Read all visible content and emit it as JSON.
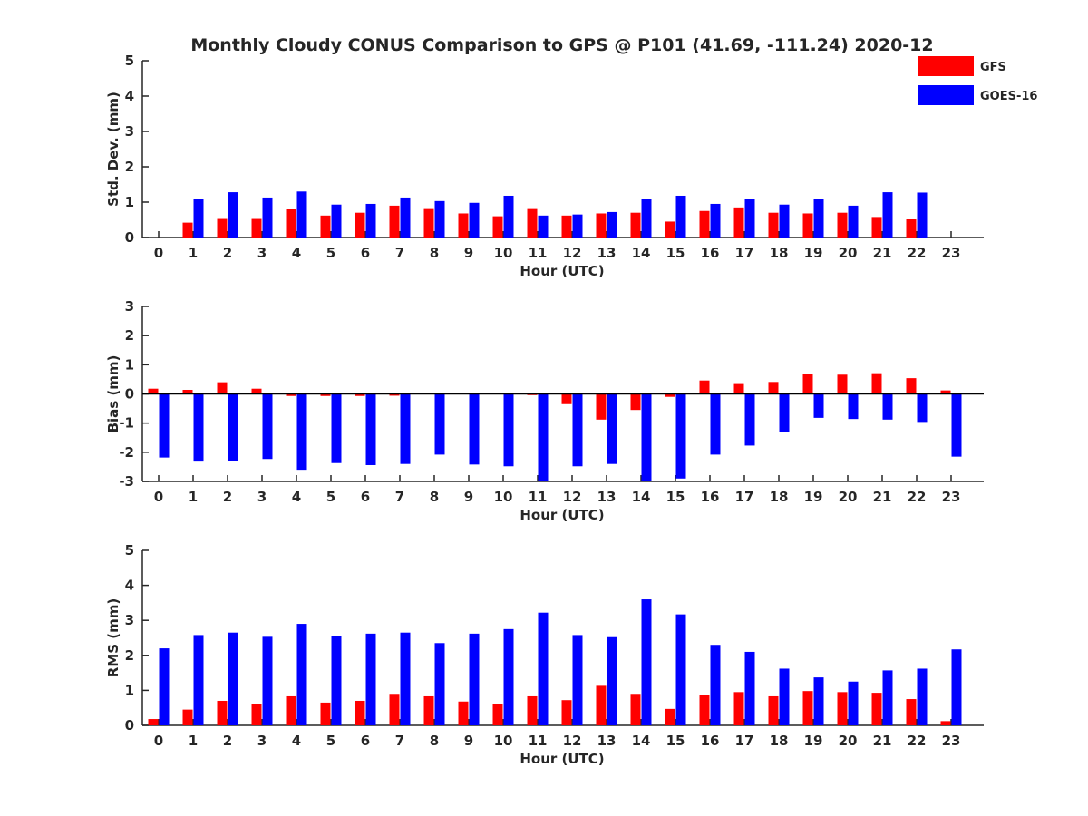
{
  "chart_data": [
    {
      "type": "bar",
      "title": "Monthly Cloudy CONUS Comparison to GPS @ P101 (41.69, -111.24) 2020-12",
      "xlabel": "Hour (UTC)",
      "ylabel": "Std. Dev. (mm)",
      "ylim": [
        0,
        5
      ],
      "yticks": [
        0,
        1,
        2,
        3,
        4,
        5
      ],
      "categories": [
        "0",
        "1",
        "2",
        "3",
        "4",
        "5",
        "6",
        "7",
        "8",
        "9",
        "10",
        "11",
        "12",
        "13",
        "14",
        "15",
        "16",
        "17",
        "18",
        "19",
        "20",
        "21",
        "22",
        "23"
      ],
      "legend": {
        "position": "top-right",
        "entries": [
          "GFS",
          "GOES-16"
        ]
      },
      "series": [
        {
          "name": "GFS",
          "color": "#ff0000",
          "values": [
            null,
            0.42,
            0.55,
            0.55,
            0.8,
            0.62,
            0.7,
            0.9,
            0.83,
            0.68,
            0.6,
            0.83,
            0.62,
            0.68,
            0.7,
            0.45,
            0.75,
            0.85,
            0.7,
            0.68,
            0.7,
            0.58,
            0.52,
            null
          ]
        },
        {
          "name": "GOES-16",
          "color": "#0000ff",
          "values": [
            null,
            1.08,
            1.28,
            1.13,
            1.3,
            0.93,
            0.95,
            1.13,
            1.03,
            0.98,
            1.18,
            0.62,
            0.65,
            0.72,
            1.1,
            1.18,
            0.95,
            1.08,
            0.93,
            1.1,
            0.9,
            1.28,
            1.27,
            null
          ]
        }
      ]
    },
    {
      "type": "bar",
      "xlabel": "Hour (UTC)",
      "ylabel": "Bias (mm)",
      "ylim": [
        -3,
        3
      ],
      "yticks": [
        -3,
        -2,
        -1,
        0,
        1,
        2,
        3
      ],
      "categories": [
        "0",
        "1",
        "2",
        "3",
        "4",
        "5",
        "6",
        "7",
        "8",
        "9",
        "10",
        "11",
        "12",
        "13",
        "14",
        "15",
        "16",
        "17",
        "18",
        "19",
        "20",
        "21",
        "22",
        "23"
      ],
      "series": [
        {
          "name": "GFS",
          "color": "#ff0000",
          "values": [
            0.18,
            0.14,
            0.4,
            0.18,
            -0.07,
            -0.07,
            -0.07,
            -0.06,
            0.0,
            0.02,
            0.0,
            -0.04,
            -0.35,
            -0.88,
            -0.55,
            -0.1,
            0.46,
            0.37,
            0.41,
            0.68,
            0.66,
            0.71,
            0.54,
            0.12
          ]
        },
        {
          "name": "GOES-16",
          "color": "#0000ff",
          "values": [
            -2.18,
            -2.32,
            -2.3,
            -2.23,
            -2.6,
            -2.37,
            -2.44,
            -2.4,
            -2.08,
            -2.42,
            -2.48,
            -3.0,
            -2.48,
            -2.4,
            -3.0,
            -2.9,
            -2.08,
            -1.77,
            -1.3,
            -0.82,
            -0.86,
            -0.88,
            -0.96,
            -2.15
          ]
        }
      ]
    },
    {
      "type": "bar",
      "xlabel": "Hour (UTC)",
      "ylabel": "RMS (mm)",
      "ylim": [
        0,
        5
      ],
      "yticks": [
        0,
        1,
        2,
        3,
        4,
        5
      ],
      "categories": [
        "0",
        "1",
        "2",
        "3",
        "4",
        "5",
        "6",
        "7",
        "8",
        "9",
        "10",
        "11",
        "12",
        "13",
        "14",
        "15",
        "16",
        "17",
        "18",
        "19",
        "20",
        "21",
        "22",
        "23"
      ],
      "series": [
        {
          "name": "GFS",
          "color": "#ff0000",
          "values": [
            0.18,
            0.45,
            0.7,
            0.6,
            0.83,
            0.65,
            0.7,
            0.9,
            0.83,
            0.68,
            0.62,
            0.83,
            0.72,
            1.13,
            0.9,
            0.47,
            0.88,
            0.95,
            0.83,
            0.98,
            0.95,
            0.93,
            0.75,
            0.12
          ]
        },
        {
          "name": "GOES-16",
          "color": "#0000ff",
          "values": [
            2.2,
            2.58,
            2.65,
            2.53,
            2.9,
            2.55,
            2.62,
            2.65,
            2.35,
            2.62,
            2.75,
            3.22,
            2.58,
            2.52,
            3.6,
            3.17,
            2.3,
            2.1,
            1.62,
            1.37,
            1.25,
            1.57,
            1.62,
            2.17
          ]
        }
      ]
    }
  ]
}
